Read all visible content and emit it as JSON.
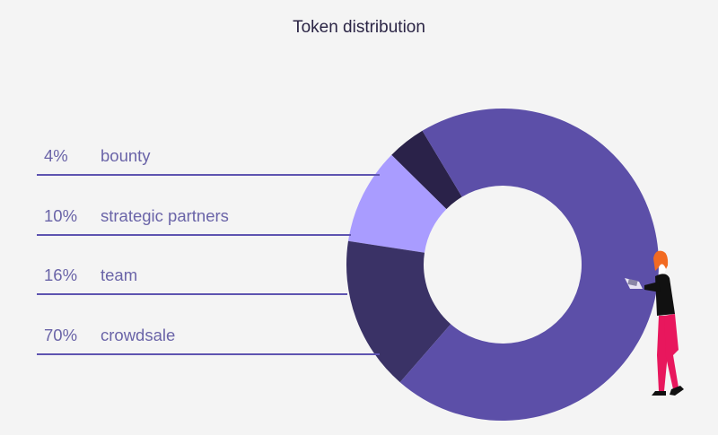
{
  "chart_data": {
    "type": "pie",
    "variant": "donut",
    "title": "Token distribution",
    "categories": [
      "bounty",
      "strategic partners",
      "team",
      "crowdsale"
    ],
    "values": [
      4,
      10,
      16,
      70
    ],
    "labels": [
      "4%",
      "10%",
      "16%",
      "70%"
    ],
    "colors": [
      "#2a2249",
      "#a99cff",
      "#3a3266",
      "#5c4fa8"
    ],
    "legend_position": "left"
  },
  "colors": {
    "background": "#f4f4f4",
    "rule": "#5e54b0",
    "label_text": "#6a64a8",
    "title_text": "#2b2545"
  }
}
